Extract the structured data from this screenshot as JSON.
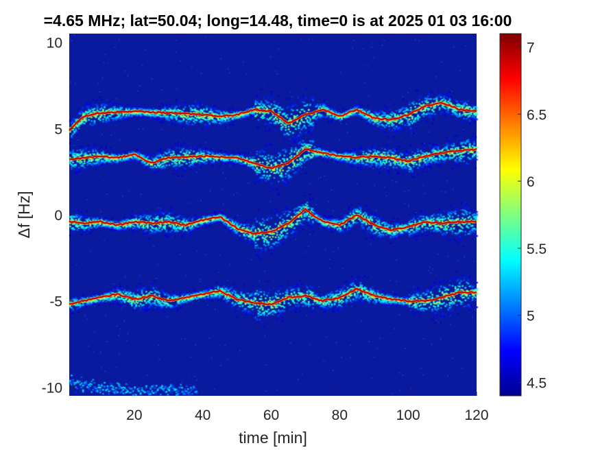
{
  "chart_data": {
    "type": "heatmap",
    "title": "=4.65 MHz;  lat=50.04; long=14.48, time=0 is at 2025 01 03 16:00",
    "xlabel": "time [min]",
    "ylabel": "Δf [Hz]",
    "xlim": [
      1,
      120
    ],
    "ylim": [
      -10.5,
      10.5
    ],
    "xticks": [
      "20",
      "40",
      "60",
      "80",
      "100",
      "120"
    ],
    "yticks": [
      "10",
      "5",
      "0",
      "-5",
      "-10"
    ],
    "colorbar": {
      "min": 4.4,
      "max": 7.1,
      "ticks": [
        "7",
        "6.5",
        "6",
        "5.5",
        "5",
        "4.5"
      ],
      "colormap": "jet"
    },
    "background_level": 4.45,
    "traces": [
      {
        "x": [
          1,
          5,
          10,
          20,
          30,
          40,
          45,
          50,
          55,
          60,
          65,
          70,
          75,
          80,
          85,
          90,
          95,
          100,
          105,
          110,
          115,
          120
        ],
        "y": [
          4.9,
          5.7,
          5.9,
          6.0,
          5.9,
          5.8,
          5.7,
          5.8,
          6.1,
          6.0,
          5.3,
          5.8,
          6.1,
          5.7,
          6.1,
          5.6,
          5.5,
          5.8,
          6.3,
          6.5,
          6.1,
          6.0
        ]
      },
      {
        "x": [
          1,
          5,
          10,
          15,
          20,
          25,
          30,
          40,
          50,
          55,
          60,
          65,
          70,
          75,
          80,
          85,
          90,
          95,
          100,
          105,
          110,
          115,
          120
        ],
        "y": [
          3.2,
          3.3,
          3.4,
          3.3,
          3.5,
          3.0,
          3.3,
          3.4,
          3.3,
          3.0,
          2.7,
          3.0,
          3.8,
          3.6,
          3.4,
          3.3,
          3.4,
          3.3,
          3.1,
          3.4,
          3.6,
          3.7,
          3.8
        ]
      },
      {
        "x": [
          1,
          5,
          10,
          15,
          20,
          25,
          30,
          35,
          40,
          45,
          50,
          55,
          60,
          65,
          70,
          75,
          80,
          85,
          90,
          95,
          100,
          105,
          110,
          115,
          120
        ],
        "y": [
          -0.4,
          -0.5,
          -0.4,
          -0.6,
          -0.4,
          -0.5,
          -0.4,
          -0.6,
          -0.3,
          -0.1,
          -0.8,
          -1.1,
          -1.0,
          -0.5,
          0.3,
          -0.4,
          -0.6,
          0.0,
          -0.6,
          -0.9,
          -0.7,
          -0.4,
          -0.5,
          -0.4,
          -0.4
        ]
      },
      {
        "x": [
          1,
          5,
          10,
          15,
          20,
          25,
          30,
          35,
          40,
          45,
          50,
          55,
          60,
          65,
          70,
          75,
          80,
          85,
          90,
          95,
          100,
          105,
          110,
          115,
          120
        ],
        "y": [
          -5.2,
          -5.0,
          -4.8,
          -4.6,
          -4.9,
          -4.7,
          -5.0,
          -4.8,
          -4.6,
          -4.4,
          -4.9,
          -5.1,
          -5.2,
          -4.8,
          -4.7,
          -5.0,
          -4.8,
          -4.3,
          -4.7,
          -4.9,
          -5.0,
          -5.0,
          -4.8,
          -4.5,
          -4.5
        ]
      },
      {
        "x": [
          1,
          10,
          20,
          30,
          38
        ],
        "y": [
          -9.7,
          -10.0,
          -10.2,
          -10.1,
          -10.2
        ]
      }
    ]
  }
}
